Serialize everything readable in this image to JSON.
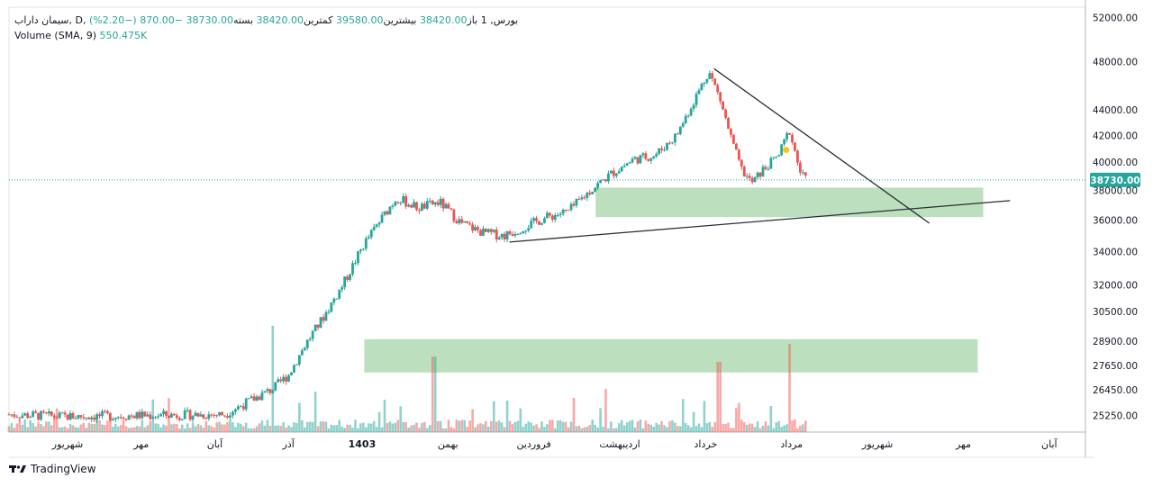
{
  "legend": {
    "symbol": "سیمان داراب, D, بورس, 1",
    "open_label": "باز",
    "open": "38420.00",
    "high_label": "بیشترین",
    "high": "39580.00",
    "low_label": "کمترین",
    "low": "38420.00",
    "close_label": "بسته",
    "close": "38730.00",
    "change": "−870.00 (−2.20%)",
    "volume_label": "Volume",
    "volume_params": "(SMA, 9)",
    "volume_value": "550.475K"
  },
  "brand": "TradingView",
  "colors": {
    "up": "#26a69a",
    "down": "#ef5350",
    "zone": "#a5d6a7",
    "price_tag": "#26a69a"
  },
  "chart_data": {
    "type": "candlestick",
    "y_scale": "log",
    "ylim": [
      24500,
      53000
    ],
    "y_ticks": [
      "52000.00",
      "48000.00",
      "44000.00",
      "42000.00",
      "40000.00",
      "38000.00",
      "36000.00",
      "34000.00",
      "32000.00",
      "30500.00",
      "28900.00",
      "27650.00",
      "26450.00",
      "25250.00"
    ],
    "y_tick_values": [
      52000,
      48000,
      44000,
      42000,
      40000,
      38000,
      36000,
      34000,
      32000,
      30500,
      28900,
      27650,
      26450,
      25250
    ],
    "last_price": 38730,
    "last_price_label": "38730.00",
    "x_labels": [
      "شهریور",
      "مهر",
      "آبان",
      "آذر",
      "1403",
      "بهمن",
      "فروردین",
      "اردیبهشت",
      "خرداد",
      "مرداد",
      "شهریور",
      "مهر",
      "آبان"
    ],
    "x_label_positions": [
      0.0,
      0.06,
      0.12,
      0.18,
      0.24,
      0.31,
      0.38,
      0.45,
      0.52,
      0.59,
      0.66,
      0.73,
      0.8
    ],
    "price_path": [
      {
        "t": 0.0,
        "p": 25300
      },
      {
        "t": 0.05,
        "p": 25200
      },
      {
        "t": 0.12,
        "p": 25250
      },
      {
        "t": 0.2,
        "p": 25300
      },
      {
        "t": 0.245,
        "p": 26500
      },
      {
        "t": 0.26,
        "p": 27200
      },
      {
        "t": 0.275,
        "p": 28700
      },
      {
        "t": 0.29,
        "p": 30000
      },
      {
        "t": 0.31,
        "p": 32000
      },
      {
        "t": 0.33,
        "p": 34500
      },
      {
        "t": 0.35,
        "p": 36500
      },
      {
        "t": 0.36,
        "p": 37500
      },
      {
        "t": 0.38,
        "p": 36800
      },
      {
        "t": 0.4,
        "p": 37200
      },
      {
        "t": 0.42,
        "p": 35800
      },
      {
        "t": 0.44,
        "p": 35200
      },
      {
        "t": 0.46,
        "p": 35000
      },
      {
        "t": 0.48,
        "p": 35600
      },
      {
        "t": 0.5,
        "p": 36200
      },
      {
        "t": 0.52,
        "p": 36600
      },
      {
        "t": 0.54,
        "p": 38000
      },
      {
        "t": 0.56,
        "p": 39200
      },
      {
        "t": 0.58,
        "p": 40200
      },
      {
        "t": 0.6,
        "p": 40500
      },
      {
        "t": 0.62,
        "p": 42000
      },
      {
        "t": 0.635,
        "p": 44500
      },
      {
        "t": 0.65,
        "p": 47200
      },
      {
        "t": 0.66,
        "p": 45000
      },
      {
        "t": 0.67,
        "p": 42000
      },
      {
        "t": 0.68,
        "p": 39500
      },
      {
        "t": 0.69,
        "p": 38500
      },
      {
        "t": 0.7,
        "p": 39400
      },
      {
        "t": 0.715,
        "p": 40500
      },
      {
        "t": 0.725,
        "p": 42400
      },
      {
        "t": 0.735,
        "p": 39300
      },
      {
        "t": 0.74,
        "p": 38730
      }
    ],
    "zones": [
      {
        "name": "upper-support-zone",
        "from_t": 0.545,
        "to_t": 0.905,
        "low": 36200,
        "high": 38200
      },
      {
        "name": "lower-support-zone",
        "from_t": 0.33,
        "to_t": 0.9,
        "low": 27300,
        "high": 29000
      }
    ],
    "trendlines": [
      {
        "name": "ascending-trendline",
        "t1": 0.465,
        "p1": 34600,
        "t2": 0.93,
        "p2": 37300
      },
      {
        "name": "descending-trendline",
        "t1": 0.655,
        "p1": 47400,
        "t2": 0.855,
        "p2": 35800
      }
    ],
    "marker": {
      "t": 0.722,
      "p": 40900,
      "color": "#f9c80e"
    }
  }
}
